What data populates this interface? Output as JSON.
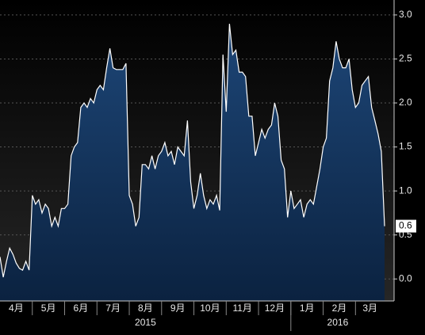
{
  "chart_data": {
    "type": "area",
    "categories": [
      "4月",
      null,
      null,
      null,
      null,
      null,
      null,
      null,
      null,
      null,
      "5月",
      null,
      null,
      null,
      null,
      null,
      null,
      null,
      null,
      null,
      "6月",
      null,
      null,
      null,
      null,
      null,
      null,
      null,
      null,
      null,
      "7月",
      null,
      null,
      null,
      null,
      null,
      null,
      null,
      null,
      null,
      "8月",
      null,
      null,
      null,
      null,
      null,
      null,
      null,
      null,
      null,
      "9月",
      null,
      null,
      null,
      null,
      null,
      null,
      null,
      null,
      null,
      "10月",
      null,
      null,
      null,
      null,
      null,
      null,
      null,
      null,
      null,
      "11月",
      null,
      null,
      null,
      null,
      null,
      null,
      null,
      null,
      null,
      "12月",
      null,
      null,
      null,
      null,
      null,
      null,
      null,
      null,
      null,
      "1月",
      null,
      null,
      null,
      null,
      null,
      null,
      null,
      null,
      null,
      "2月",
      null,
      null,
      null,
      null,
      null,
      null,
      null,
      null,
      null,
      "3月",
      null,
      null,
      null,
      null,
      null,
      null,
      null,
      null,
      null
    ],
    "years": [
      "2015",
      "2016"
    ],
    "series": [
      {
        "color": "#ffffff",
        "fill": "#14355f",
        "values": [
          0.25,
          0.02,
          0.2,
          0.35,
          0.28,
          0.18,
          0.12,
          0.1,
          0.2,
          0.1,
          0.95,
          0.85,
          0.9,
          0.75,
          0.85,
          0.8,
          0.6,
          0.7,
          0.6,
          0.8,
          0.8,
          0.85,
          1.4,
          1.5,
          1.55,
          1.95,
          2.0,
          1.95,
          2.05,
          2.0,
          2.15,
          2.2,
          2.15,
          2.4,
          2.62,
          2.4,
          2.38,
          2.38,
          2.38,
          2.45,
          0.95,
          0.85,
          0.6,
          0.7,
          1.3,
          1.3,
          1.25,
          1.4,
          1.25,
          1.4,
          1.45,
          1.55,
          1.4,
          1.45,
          1.3,
          1.5,
          1.45,
          1.4,
          1.8,
          1.1,
          0.8,
          0.95,
          1.2,
          0.95,
          0.8,
          0.9,
          0.85,
          0.95,
          0.78,
          2.55,
          1.9,
          2.9,
          2.55,
          2.6,
          2.35,
          2.35,
          2.3,
          1.85,
          1.85,
          1.4,
          1.55,
          1.7,
          1.6,
          1.7,
          1.75,
          2.0,
          1.85,
          1.35,
          1.25,
          0.7,
          1.0,
          0.8,
          0.85,
          0.9,
          0.7,
          0.85,
          0.9,
          0.85,
          1.05,
          1.25,
          1.5,
          1.6,
          2.25,
          2.4,
          2.7,
          2.5,
          2.4,
          2.4,
          2.5,
          2.15,
          1.95,
          2.0,
          2.2,
          2.25,
          2.3,
          1.95,
          1.8,
          1.65,
          1.45,
          0.6
        ]
      }
    ],
    "ylim": [
      -0.25,
      3.17
    ],
    "yticks": [
      {
        "value": 0,
        "label": "0.0"
      },
      0.5,
      {
        "value": 1,
        "label": "1.0"
      },
      1.5,
      {
        "value": 2,
        "label": "2.0"
      },
      2.5,
      {
        "value": 3,
        "label": "3.0"
      }
    ],
    "grid": true
  }
}
